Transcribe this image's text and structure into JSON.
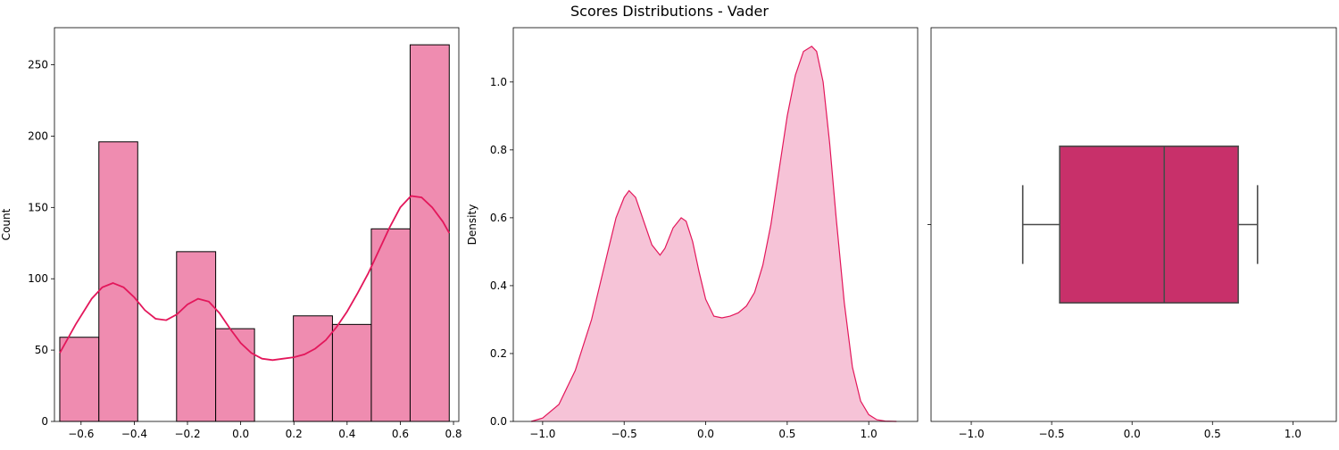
{
  "figure": {
    "title": "Scores Distributions - Vader"
  },
  "colors": {
    "hist_fill": "#ef8cb0",
    "kde_line": "#e3175b",
    "kde_fill": "#f6c3d7",
    "box_fill": "#c8306a",
    "box_edge": "#4a4a4a",
    "edge": "#000000"
  },
  "chart_data": [
    {
      "type": "bar",
      "subtype": "histogram",
      "xlabel": "",
      "ylabel": "Count",
      "xlim": [
        -0.7,
        0.82
      ],
      "ylim": [
        0,
        276
      ],
      "xticks": [
        -0.6,
        -0.4,
        -0.2,
        0.0,
        0.2,
        0.4,
        0.6,
        0.8
      ],
      "xtick_labels": [
        "−0.6",
        "−0.4",
        "−0.2",
        "0.0",
        "0.2",
        "0.4",
        "0.6",
        "0.8"
      ],
      "yticks": [
        0,
        50,
        100,
        150,
        200,
        250
      ],
      "ytick_labels": [
        "0",
        "50",
        "100",
        "150",
        "200",
        "250"
      ],
      "bin_edges": [
        -0.68,
        -0.533,
        -0.387,
        -0.241,
        -0.094,
        0.052,
        0.198,
        0.345,
        0.491,
        0.637,
        0.784
      ],
      "counts": [
        59,
        196,
        0,
        119,
        65,
        0,
        74,
        68,
        135,
        264
      ],
      "kde_overlay": {
        "x": [
          -0.68,
          -0.62,
          -0.56,
          -0.52,
          -0.48,
          -0.44,
          -0.4,
          -0.36,
          -0.32,
          -0.28,
          -0.24,
          -0.2,
          -0.16,
          -0.12,
          -0.08,
          -0.04,
          0.0,
          0.04,
          0.08,
          0.12,
          0.16,
          0.2,
          0.24,
          0.28,
          0.32,
          0.36,
          0.4,
          0.44,
          0.48,
          0.52,
          0.56,
          0.6,
          0.64,
          0.68,
          0.72,
          0.76,
          0.784
        ],
        "y": [
          48,
          68,
          86,
          94,
          97,
          94,
          87,
          78,
          72,
          71,
          75,
          82,
          86,
          84,
          76,
          65,
          55,
          48,
          44,
          43,
          44,
          45,
          47,
          51,
          57,
          66,
          77,
          90,
          104,
          120,
          136,
          150,
          158,
          157,
          150,
          140,
          132
        ]
      }
    },
    {
      "type": "area",
      "subtype": "kde",
      "xlabel": "",
      "ylabel": "Density",
      "xlim": [
        -1.18,
        1.3
      ],
      "ylim": [
        0,
        1.16
      ],
      "xticks": [
        -1.0,
        -0.5,
        0.0,
        0.5,
        1.0
      ],
      "xtick_labels": [
        "−1.0",
        "−0.5",
        "0.0",
        "0.5",
        "1.0"
      ],
      "yticks": [
        0.0,
        0.2,
        0.4,
        0.6,
        0.8,
        1.0
      ],
      "ytick_labels": [
        "0.0",
        "0.2",
        "0.4",
        "0.6",
        "0.8",
        "1.0"
      ],
      "x": [
        -1.07,
        -1.0,
        -0.9,
        -0.8,
        -0.7,
        -0.6,
        -0.55,
        -0.5,
        -0.47,
        -0.43,
        -0.38,
        -0.33,
        -0.28,
        -0.25,
        -0.2,
        -0.15,
        -0.12,
        -0.08,
        -0.04,
        0.0,
        0.05,
        0.1,
        0.15,
        0.2,
        0.25,
        0.3,
        0.35,
        0.4,
        0.45,
        0.5,
        0.55,
        0.6,
        0.65,
        0.68,
        0.72,
        0.76,
        0.8,
        0.85,
        0.9,
        0.95,
        1.0,
        1.05,
        1.1,
        1.17
      ],
      "y": [
        0.0,
        0.01,
        0.05,
        0.15,
        0.3,
        0.5,
        0.6,
        0.66,
        0.68,
        0.66,
        0.59,
        0.52,
        0.49,
        0.51,
        0.57,
        0.6,
        0.59,
        0.53,
        0.44,
        0.36,
        0.31,
        0.305,
        0.31,
        0.32,
        0.34,
        0.38,
        0.46,
        0.58,
        0.74,
        0.9,
        1.02,
        1.09,
        1.105,
        1.09,
        1.0,
        0.82,
        0.6,
        0.35,
        0.16,
        0.06,
        0.02,
        0.005,
        0.001,
        0.0
      ]
    },
    {
      "type": "box",
      "orientation": "horizontal",
      "xlabel": "",
      "ylabel": "",
      "xlim": [
        -1.25,
        1.27
      ],
      "xticks": [
        -1.0,
        -0.5,
        0.0,
        0.5,
        1.0
      ],
      "xtick_labels": [
        "−1.0",
        "−0.5",
        "0.0",
        "0.5",
        "1.0"
      ],
      "whisker_low": -0.68,
      "q1": -0.45,
      "median": 0.2,
      "q3": 0.66,
      "whisker_high": 0.78
    }
  ]
}
